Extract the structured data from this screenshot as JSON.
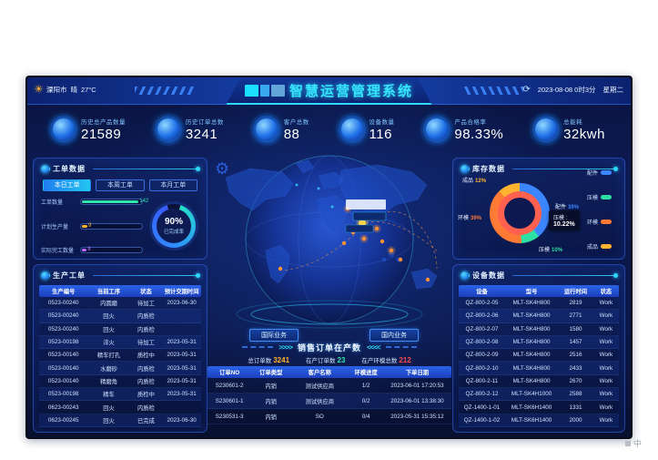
{
  "header": {
    "city": "溧阳市",
    "weather": "晴",
    "temp": "27°C",
    "title": "智慧运营管理系统",
    "date": "2023-08-08 0时3分",
    "weekday": "星期二"
  },
  "kpis": [
    {
      "label": "历史总产品数量",
      "value": "21589"
    },
    {
      "label": "历史订单总数",
      "value": "3241"
    },
    {
      "label": "客户总数",
      "value": "88"
    },
    {
      "label": "设备数量",
      "value": "116"
    },
    {
      "label": "产品合格率",
      "value": "98.33%"
    },
    {
      "label": "总能耗",
      "value": "32kwh"
    }
  ],
  "workorder": {
    "title": "工单数据",
    "tabs": [
      {
        "label": "本日工单",
        "active": true
      },
      {
        "label": "本周工单",
        "active": false
      },
      {
        "label": "本月工单",
        "active": false
      }
    ],
    "bars": [
      {
        "label": "工单数量",
        "value": "142",
        "pct": 93,
        "color": "#2fe6b0"
      },
      {
        "label": "计划生产量",
        "value": "9",
        "pct": 9,
        "color": "#ffb32e"
      },
      {
        "label": "实际完工数量",
        "value": "8",
        "pct": 8,
        "color": "#c06bff"
      }
    ],
    "gauge": {
      "value": "90%",
      "label": "已完成率"
    }
  },
  "production": {
    "title": "生产工单",
    "headers": [
      "生产编号",
      "当前工序",
      "状态",
      "预计交期时间"
    ],
    "rows": [
      [
        "0523-00240",
        "内圆磨",
        "待加工",
        "2023-06-30"
      ],
      [
        "0523-00240",
        "回火",
        "内质检",
        ""
      ],
      [
        "0523-00240",
        "回火",
        "内质检",
        ""
      ],
      [
        "0523-00198",
        "淬火",
        "待加工",
        "2023-05-31"
      ],
      [
        "0523-00140",
        "精车打孔",
        "质检中",
        "2023-05-31"
      ],
      [
        "0523-00140",
        "水磨砂",
        "内质检",
        "2023-05-31"
      ],
      [
        "0523-00140",
        "精磨角",
        "内质检",
        "2023-05-31"
      ],
      [
        "0523-00198",
        "精车",
        "质检中",
        "2023-05-31"
      ],
      [
        "0623-00243",
        "回火",
        "内质检",
        ""
      ],
      [
        "0623-00245",
        "回火",
        "已完成",
        "2023-06-30"
      ]
    ]
  },
  "map": {
    "buttons": [
      {
        "label": "国际业务"
      },
      {
        "label": "国内业务"
      }
    ]
  },
  "sales": {
    "title": "销售订单在产数",
    "stats": [
      {
        "label": "总订单数",
        "value": "3241",
        "color": "#ffb32e"
      },
      {
        "label": "在产订单数",
        "value": "23",
        "color": "#2fe6b0"
      },
      {
        "label": "在产环模总数",
        "value": "212",
        "color": "#ff4d4d"
      }
    ],
    "headers": [
      "订单NO",
      "订单类型",
      "客户名称",
      "环模进度",
      "下单日期"
    ],
    "rows": [
      [
        "S230601-2",
        "内销",
        "测试供应商",
        "1/2",
        "2023-06-01 17:20:53"
      ],
      [
        "S230601-1",
        "内销",
        "测试供应商",
        "0/2",
        "2023-06-01 13:38:30"
      ],
      [
        "S230531-3",
        "内销",
        "SO",
        "0/4",
        "2023-05-31 15:35:12"
      ]
    ]
  },
  "inventory": {
    "title": "库存数据",
    "slices": [
      {
        "name": "配件",
        "pct": "39%",
        "value": 39,
        "color": "#3b86ff"
      },
      {
        "name": "压模",
        "pct": "10%",
        "value": 10,
        "color": "#2ddfa2"
      },
      {
        "name": "环模",
        "pct": "39%",
        "value": 39,
        "color": "#ff7a35"
      },
      {
        "name": "成品",
        "pct": "12%",
        "value": 12,
        "color": "#ffb32e"
      }
    ],
    "tooltip": {
      "label": "压模 :",
      "value": "10.22%"
    }
  },
  "equipment": {
    "title": "设备数据",
    "headers": [
      "设备",
      "型号",
      "运行时间",
      "状态"
    ],
    "rows": [
      [
        "QZ-800-2-05",
        "MLT-SK4H800",
        "2819",
        "Work"
      ],
      [
        "QZ-800-2-06",
        "MLT-SK4H800",
        "2771",
        "Work"
      ],
      [
        "QZ-800-2-07",
        "MLT-SK4H800",
        "1580",
        "Work"
      ],
      [
        "QZ-800-2-08",
        "MLT-SK4H800",
        "1457",
        "Work"
      ],
      [
        "QZ-800-2-09",
        "MLT-SK4H800",
        "2516",
        "Work"
      ],
      [
        "QZ-800-2-10",
        "MLT-SK4H800",
        "2433",
        "Work"
      ],
      [
        "QZ-800-2-11",
        "MLT-SK4H800",
        "2670",
        "Work"
      ],
      [
        "QZ-800-2-12",
        "MLT-SK4H1000",
        "2588",
        "Work"
      ],
      [
        "QZ-1400-1-01",
        "MLT-SK6H1400",
        "1331",
        "Work"
      ],
      [
        "QZ-1400-1-02",
        "MLT-SK6H1400",
        "2000",
        "Work"
      ]
    ]
  },
  "watermark": "中",
  "chart_data": [
    {
      "type": "pie",
      "title": "库存数据",
      "series": [
        {
          "name": "配件",
          "value": 39,
          "color": "#3b86ff"
        },
        {
          "name": "压模",
          "value": 10,
          "color": "#2ddfa2"
        },
        {
          "name": "环模",
          "value": 39,
          "color": "#ff7a35"
        },
        {
          "name": "成品",
          "value": 12,
          "color": "#ffb32e"
        }
      ],
      "unit": "%",
      "legend_position": "right",
      "tooltip": "压模 : 10.22%"
    },
    {
      "type": "bar",
      "title": "工单数据 (本日工单)",
      "categories": [
        "工单数量",
        "计划生产量",
        "实际完工数量"
      ],
      "values": [
        142,
        9,
        8
      ],
      "orientation": "horizontal"
    },
    {
      "type": "gauge",
      "title": "已完成率",
      "value": 90,
      "unit": "%"
    }
  ]
}
